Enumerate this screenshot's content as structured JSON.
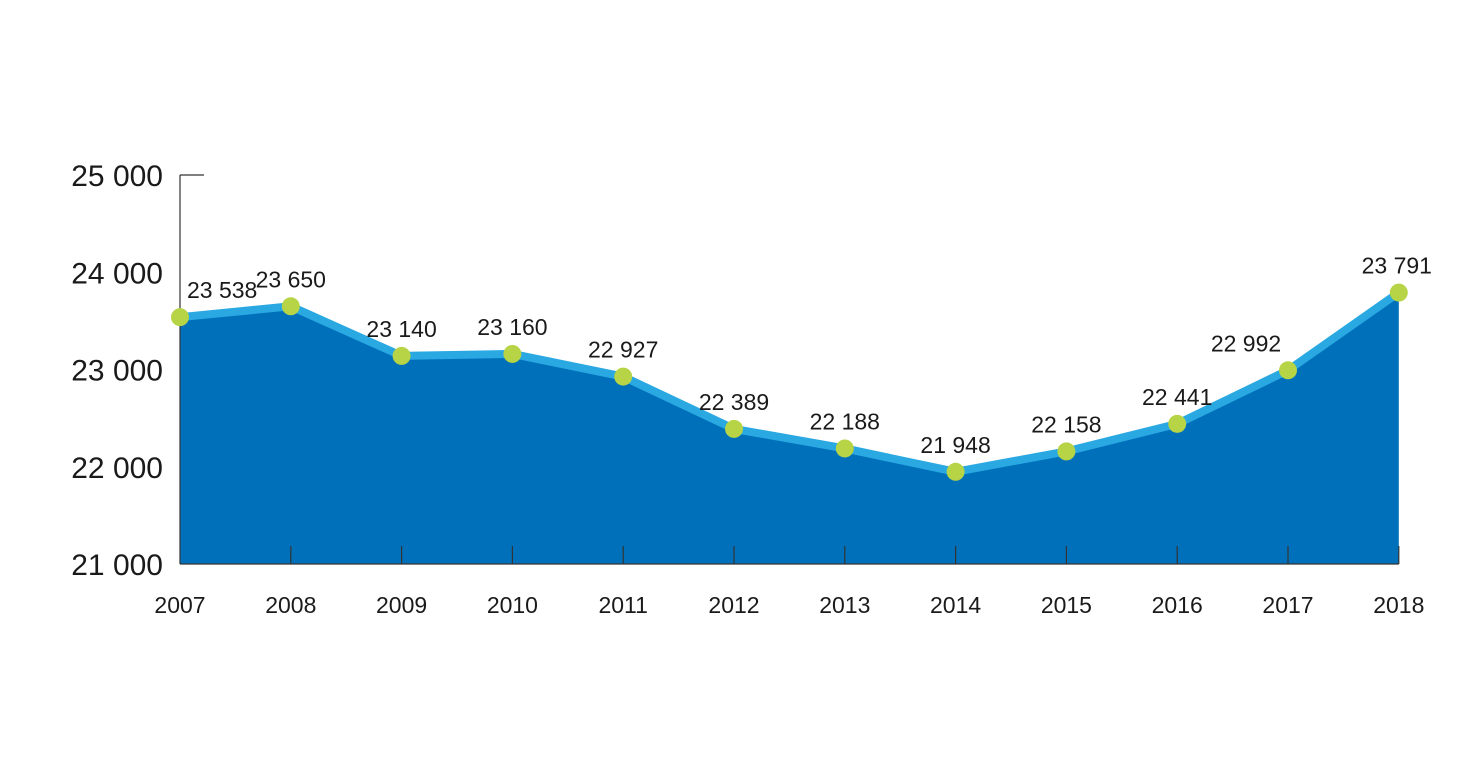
{
  "chart_data": {
    "type": "area",
    "categories": [
      "2007",
      "2008",
      "2009",
      "2010",
      "2011",
      "2012",
      "2013",
      "2014",
      "2015",
      "2016",
      "2017",
      "2018"
    ],
    "values": [
      23538,
      23650,
      23140,
      23160,
      22927,
      22389,
      22188,
      21948,
      22158,
      22441,
      22992,
      23791
    ],
    "data_labels": [
      "23 538",
      "23 650",
      "23 140",
      "23 160",
      "22 927",
      "22 389",
      "22 188",
      "21 948",
      "22 158",
      "22 441",
      "22 992",
      "23 791"
    ],
    "ylim": [
      21000,
      25000
    ],
    "yticks": [
      21000,
      22000,
      23000,
      24000,
      25000
    ],
    "ytick_labels": [
      "21 000",
      "22 000",
      "23 000",
      "24 000",
      "25 000"
    ],
    "title": "",
    "xlabel": "",
    "ylabel": "",
    "grid": false,
    "legend": "none",
    "colors": {
      "area_fill": "#0070bb",
      "line": "#29a8e2",
      "markers": "#b6d445",
      "axis": "#333333",
      "text": "#1a1a1a"
    }
  }
}
